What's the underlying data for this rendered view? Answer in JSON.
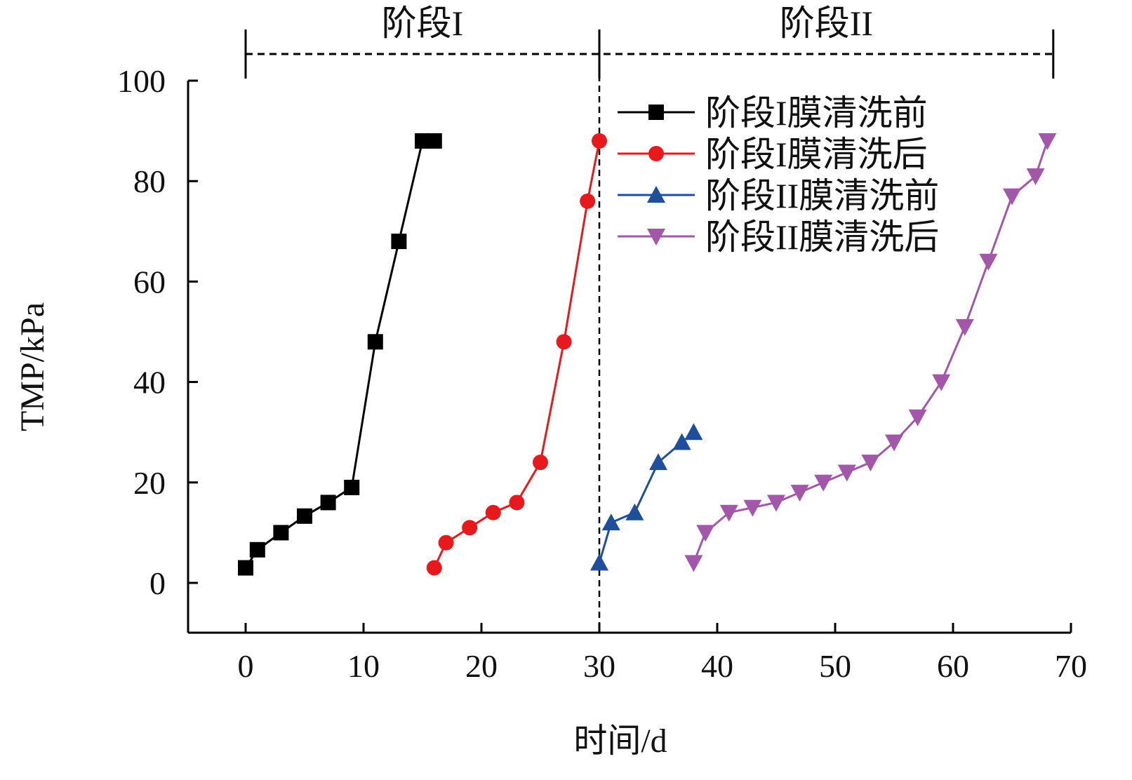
{
  "chart_data": {
    "type": "line",
    "xlabel": "时间/d",
    "ylabel": "TMP/kPa",
    "xlim": [
      -5,
      70
    ],
    "ylim": [
      -10,
      100
    ],
    "xticks": [
      "0",
      "10",
      "20",
      "30",
      "40",
      "50",
      "60",
      "70"
    ],
    "yticks": [
      "0",
      "20",
      "40",
      "60",
      "80",
      "100"
    ],
    "grid": false,
    "legend_position": "top-right",
    "stages": [
      {
        "label": "阶段I",
        "start": 0,
        "end": 30
      },
      {
        "label": "阶段II",
        "start": 30,
        "end": 68.5
      }
    ],
    "series": [
      {
        "name": "阶段I膜清洗前",
        "color": "#000000",
        "marker": "square",
        "x": [
          0,
          1,
          3,
          5,
          7,
          9,
          11,
          13,
          15,
          16
        ],
        "y": [
          3,
          6.6,
          10,
          13.3,
          16,
          19,
          48,
          68,
          88,
          88
        ]
      },
      {
        "name": "阶段I膜清洗后",
        "color": "#e8191c",
        "marker": "circle",
        "x": [
          16,
          17,
          19,
          21,
          23,
          25,
          27,
          29,
          30
        ],
        "y": [
          3,
          8,
          11,
          14,
          16,
          24,
          48,
          76,
          88
        ]
      },
      {
        "name": "阶段II膜清洗前",
        "color": "#1f4e9c",
        "marker": "triangle-up",
        "x": [
          30,
          31,
          33,
          35,
          37,
          38
        ],
        "y": [
          4,
          12,
          14,
          24,
          28,
          30
        ]
      },
      {
        "name": "阶段II膜清洗后",
        "color": "#a257a8",
        "marker": "triangle-down",
        "x": [
          38,
          39,
          41,
          43,
          45,
          47,
          49,
          51,
          53,
          55,
          57,
          59,
          61,
          63,
          65,
          67,
          68
        ],
        "y": [
          4,
          10,
          14,
          15,
          16,
          18,
          20,
          22,
          24,
          28,
          33,
          40,
          51,
          64,
          77,
          81,
          88
        ]
      }
    ]
  }
}
